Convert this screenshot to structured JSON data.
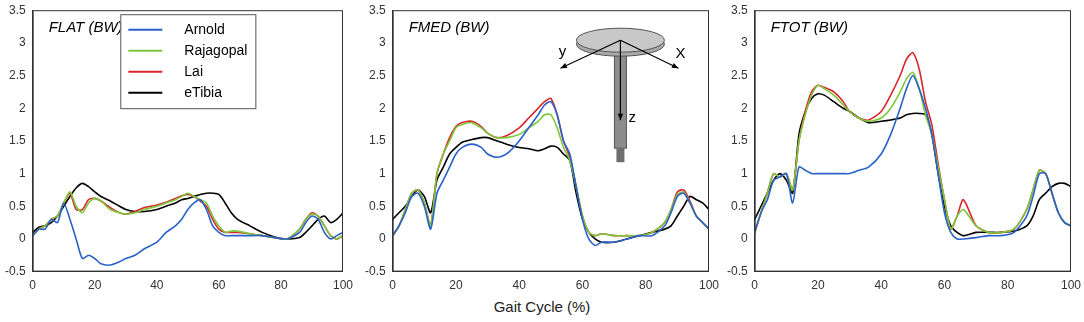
{
  "figure": {
    "xlabel": "Gait Cycle (%)"
  },
  "chart_data": [
    {
      "type": "line",
      "title": "FLAT (BW)",
      "legend": "top",
      "grid": false,
      "xlim": [
        0,
        100
      ],
      "xticks": [
        0,
        20,
        40,
        60,
        80,
        100
      ],
      "ylim": [
        -0.5,
        3.5
      ],
      "yticks": [
        -0.5,
        0,
        0.5,
        1,
        1.5,
        2,
        2.5,
        3,
        3.5
      ],
      "x": [
        0,
        2,
        4,
        6,
        8,
        10,
        12,
        14,
        16,
        18,
        20,
        22,
        25,
        28,
        30,
        33,
        36,
        40,
        43,
        46,
        48,
        50,
        52,
        54,
        56,
        58,
        60,
        62,
        64,
        66,
        70,
        74,
        78,
        82,
        86,
        88,
        90,
        92,
        94,
        96,
        98,
        100
      ],
      "series": [
        {
          "name": "Arnold",
          "color": "#2a62c9",
          "values": [
            0.05,
            0.15,
            0.15,
            0.3,
            0.25,
            0.55,
            0.3,
            0.0,
            -0.3,
            -0.25,
            -0.3,
            -0.38,
            -0.4,
            -0.35,
            -0.3,
            -0.25,
            -0.15,
            -0.05,
            0.1,
            0.2,
            0.3,
            0.45,
            0.55,
            0.6,
            0.45,
            0.2,
            0.1,
            0.05,
            0.05,
            0.05,
            0.05,
            0.05,
            0.02,
            0.0,
            0.1,
            0.25,
            0.35,
            0.3,
            0.1,
            0.0,
            0.05,
            0.1
          ]
        },
        {
          "name": "Rajagopal",
          "color": "#7dc83a",
          "values": [
            0.05,
            0.15,
            0.2,
            0.3,
            0.35,
            0.55,
            0.72,
            0.5,
            0.4,
            0.55,
            0.62,
            0.58,
            0.45,
            0.4,
            0.38,
            0.4,
            0.45,
            0.5,
            0.55,
            0.6,
            0.65,
            0.7,
            0.65,
            0.6,
            0.55,
            0.35,
            0.2,
            0.1,
            0.12,
            0.12,
            0.08,
            0.05,
            0.02,
            0.0,
            0.15,
            0.3,
            0.38,
            0.35,
            0.2,
            0.05,
            0.0,
            0.05
          ]
        },
        {
          "name": "Lai",
          "color": "#d9262b",
          "values": [
            0.05,
            0.15,
            0.2,
            0.3,
            0.35,
            0.55,
            0.7,
            0.45,
            0.45,
            0.6,
            0.62,
            0.58,
            0.48,
            0.4,
            0.38,
            0.42,
            0.48,
            0.52,
            0.56,
            0.62,
            0.66,
            0.68,
            0.65,
            0.58,
            0.5,
            0.3,
            0.15,
            0.1,
            0.1,
            0.1,
            0.08,
            0.05,
            0.02,
            0.0,
            0.15,
            0.3,
            0.4,
            0.35,
            0.2,
            0.05,
            0.0,
            0.05
          ]
        },
        {
          "name": "eTibia",
          "color": "#000000",
          "values": [
            0.1,
            0.18,
            0.2,
            0.25,
            0.35,
            0.5,
            0.65,
            0.78,
            0.85,
            0.8,
            0.72,
            0.65,
            0.58,
            0.5,
            0.45,
            0.42,
            0.42,
            0.45,
            0.5,
            0.55,
            0.6,
            0.62,
            0.65,
            0.68,
            0.7,
            0.7,
            0.68,
            0.55,
            0.4,
            0.3,
            0.2,
            0.1,
            0.03,
            0.0,
            0.02,
            0.1,
            0.2,
            0.3,
            0.35,
            0.25,
            0.3,
            0.4
          ]
        }
      ]
    },
    {
      "type": "line",
      "title": "FMED (BW)",
      "grid": false,
      "inset_axes": {
        "x": "X",
        "y": "y",
        "z": "z"
      },
      "xlim": [
        0,
        100
      ],
      "xticks": [
        0,
        20,
        40,
        60,
        80,
        100
      ],
      "ylim": [
        -0.5,
        3.5
      ],
      "yticks": [
        -0.5,
        0,
        0.5,
        1,
        1.5,
        2,
        2.5,
        3,
        3.5
      ],
      "x": [
        0,
        2,
        4,
        6,
        8,
        10,
        12,
        14,
        16,
        18,
        20,
        22,
        25,
        28,
        30,
        33,
        36,
        40,
        43,
        46,
        48,
        50,
        52,
        54,
        56,
        58,
        60,
        62,
        64,
        66,
        70,
        74,
        78,
        82,
        86,
        88,
        90,
        92,
        94,
        96,
        98,
        100
      ],
      "series": [
        {
          "name": "Arnold",
          "color": "#2a62c9",
          "values": [
            0.05,
            0.2,
            0.4,
            0.65,
            0.7,
            0.5,
            0.15,
            0.7,
            0.9,
            1.1,
            1.3,
            1.4,
            1.45,
            1.4,
            1.3,
            1.25,
            1.3,
            1.5,
            1.7,
            1.9,
            2.05,
            2.1,
            1.9,
            1.5,
            1.3,
            0.8,
            0.3,
            0.0,
            -0.1,
            -0.05,
            -0.05,
            0.0,
            0.05,
            0.05,
            0.2,
            0.4,
            0.65,
            0.7,
            0.55,
            0.35,
            0.25,
            0.15
          ]
        },
        {
          "name": "Rajagopal",
          "color": "#7dc83a",
          "values": [
            0.05,
            0.2,
            0.45,
            0.7,
            0.75,
            0.55,
            0.2,
            1.0,
            1.3,
            1.5,
            1.7,
            1.75,
            1.78,
            1.7,
            1.62,
            1.55,
            1.55,
            1.6,
            1.7,
            1.8,
            1.9,
            1.9,
            1.7,
            1.4,
            1.2,
            0.8,
            0.35,
            0.1,
            0.05,
            0.08,
            0.05,
            0.05,
            0.05,
            0.1,
            0.25,
            0.45,
            0.68,
            0.72,
            0.55,
            0.35,
            0.25,
            0.15
          ]
        },
        {
          "name": "Lai",
          "color": "#d9262b",
          "values": [
            0.05,
            0.2,
            0.45,
            0.7,
            0.75,
            0.55,
            0.2,
            1.0,
            1.3,
            1.55,
            1.72,
            1.78,
            1.8,
            1.72,
            1.62,
            1.55,
            1.58,
            1.7,
            1.85,
            2.0,
            2.1,
            2.15,
            1.9,
            1.5,
            1.25,
            0.8,
            0.35,
            0.1,
            0.05,
            0.08,
            0.05,
            0.05,
            0.05,
            0.1,
            0.25,
            0.45,
            0.72,
            0.75,
            0.58,
            0.35,
            0.25,
            0.15
          ]
        },
        {
          "name": "eTibia",
          "color": "#000000",
          "values": [
            0.3,
            0.4,
            0.5,
            0.65,
            0.75,
            0.65,
            0.4,
            0.9,
            1.1,
            1.3,
            1.4,
            1.48,
            1.52,
            1.55,
            1.55,
            1.5,
            1.45,
            1.4,
            1.38,
            1.35,
            1.38,
            1.42,
            1.4,
            1.3,
            1.2,
            0.7,
            0.3,
            0.1,
            0.0,
            -0.05,
            -0.05,
            0.0,
            0.05,
            0.1,
            0.15,
            0.2,
            0.35,
            0.5,
            0.65,
            0.6,
            0.55,
            0.45
          ]
        }
      ]
    },
    {
      "type": "line",
      "title": "FTOT (BW)",
      "grid": false,
      "xlim": [
        0,
        100
      ],
      "xticks": [
        0,
        20,
        40,
        60,
        80,
        100
      ],
      "ylim": [
        -0.5,
        3.5
      ],
      "yticks": [
        -0.5,
        0,
        0.5,
        1,
        1.5,
        2,
        2.5,
        3,
        3.5
      ],
      "x": [
        0,
        2,
        4,
        6,
        8,
        10,
        12,
        14,
        16,
        18,
        20,
        22,
        25,
        28,
        30,
        33,
        36,
        40,
        43,
        46,
        48,
        50,
        52,
        54,
        56,
        58,
        60,
        62,
        64,
        66,
        70,
        74,
        78,
        82,
        86,
        88,
        90,
        92,
        94,
        96,
        98,
        100
      ],
      "series": [
        {
          "name": "Arnold",
          "color": "#2a62c9",
          "values": [
            0.1,
            0.4,
            0.6,
            0.9,
            0.95,
            1.0,
            0.55,
            1.1,
            1.05,
            1.0,
            1.0,
            1.0,
            1.0,
            1.0,
            1.0,
            1.05,
            1.1,
            1.3,
            1.6,
            2.0,
            2.3,
            2.5,
            2.3,
            2.0,
            1.6,
            1.0,
            0.4,
            0.1,
            0.0,
            0.0,
            0.02,
            0.05,
            0.05,
            0.1,
            0.35,
            0.65,
            1.0,
            1.0,
            0.7,
            0.4,
            0.25,
            0.2
          ]
        },
        {
          "name": "Rajagopal",
          "color": "#7dc83a",
          "values": [
            0.1,
            0.4,
            0.7,
            1.0,
            0.95,
            1.0,
            0.75,
            1.5,
            1.9,
            2.2,
            2.35,
            2.3,
            2.2,
            2.05,
            1.95,
            1.85,
            1.8,
            1.85,
            2.0,
            2.25,
            2.45,
            2.55,
            2.3,
            1.9,
            1.6,
            1.1,
            0.6,
            0.15,
            0.35,
            0.45,
            0.2,
            0.1,
            0.1,
            0.15,
            0.45,
            0.75,
            1.05,
            1.0,
            0.7,
            0.4,
            0.25,
            0.2
          ]
        },
        {
          "name": "Lai",
          "color": "#d9262b",
          "values": [
            0.1,
            0.4,
            0.7,
            1.0,
            0.95,
            1.0,
            0.75,
            1.5,
            1.95,
            2.25,
            2.35,
            2.32,
            2.25,
            2.1,
            1.95,
            1.85,
            1.82,
            1.95,
            2.2,
            2.5,
            2.75,
            2.85,
            2.6,
            2.1,
            1.75,
            1.15,
            0.6,
            0.15,
            0.35,
            0.6,
            0.2,
            0.1,
            0.1,
            0.15,
            0.45,
            0.75,
            1.05,
            1.0,
            0.7,
            0.4,
            0.25,
            0.2
          ]
        },
        {
          "name": "eTibia",
          "color": "#000000",
          "values": [
            0.3,
            0.5,
            0.7,
            0.9,
            1.0,
            0.9,
            0.7,
            1.6,
            1.95,
            2.15,
            2.22,
            2.2,
            2.1,
            2.0,
            1.95,
            1.85,
            1.78,
            1.8,
            1.82,
            1.85,
            1.9,
            1.92,
            1.92,
            1.9,
            1.6,
            1.0,
            0.5,
            0.2,
            0.1,
            0.05,
            0.1,
            0.1,
            0.1,
            0.12,
            0.2,
            0.35,
            0.6,
            0.7,
            0.8,
            0.85,
            0.85,
            0.8
          ]
        }
      ]
    }
  ]
}
